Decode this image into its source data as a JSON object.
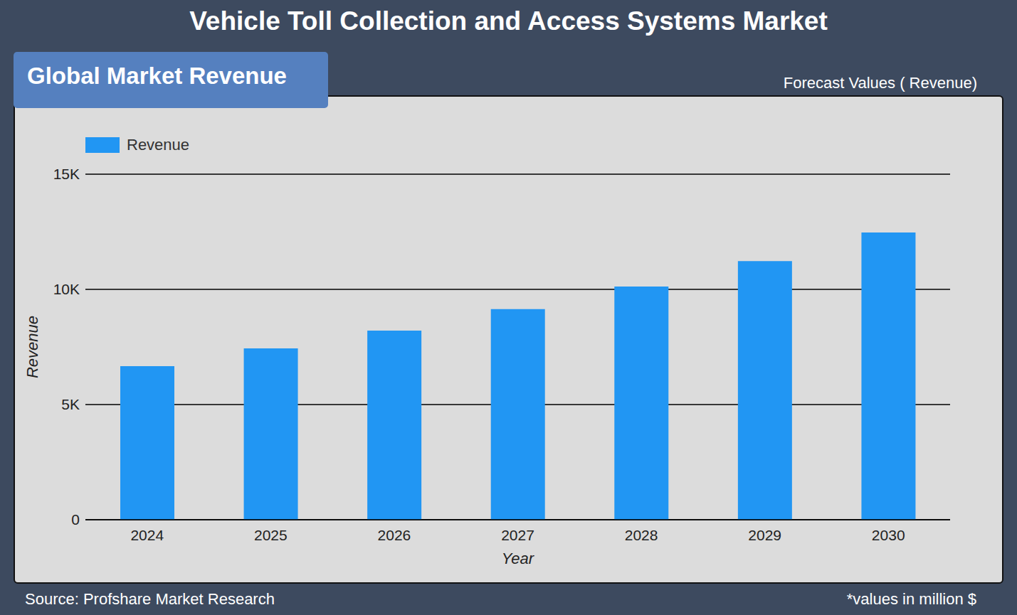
{
  "chart_data": {
    "type": "bar",
    "title": "Vehicle Toll Collection and Access Systems Market",
    "subtitle": "Global Market Revenue",
    "annotations": [
      "Forecast Values ( Revenue)"
    ],
    "source": "Source: Profshare Market Research",
    "footnote": "*values in million $",
    "x_label": "Year",
    "y_label": "Revenue",
    "categories": [
      "2024",
      "2025",
      "2026",
      "2027",
      "2028",
      "2029",
      "2030"
    ],
    "series": [
      {
        "name": "Revenue",
        "color": "#2196f3",
        "values": [
          6670,
          7440,
          8210,
          9140,
          10120,
          11230,
          12470
        ]
      }
    ],
    "ylim": [
      0,
      15000
    ],
    "yticks": [
      0,
      {
        "value": 5000,
        "label": "5K"
      },
      {
        "value": 10000,
        "label": "10K"
      },
      {
        "value": 15000,
        "label": "15K"
      }
    ],
    "grid": true,
    "legend": "top-left"
  }
}
